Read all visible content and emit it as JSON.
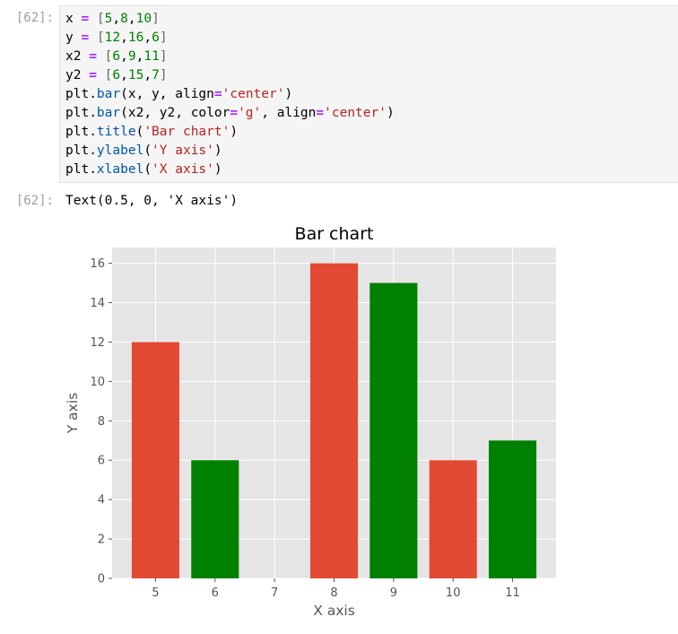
{
  "cell": {
    "input_prompt": "[62]:",
    "output_prompt": "[62]:",
    "code_lines": [
      [
        {
          "t": "x "
        },
        {
          "t": "=",
          "c": "op"
        },
        {
          "t": " "
        },
        {
          "t": "[",
          "c": "br"
        },
        {
          "t": "5",
          "c": "num"
        },
        {
          "t": ","
        },
        {
          "t": "8",
          "c": "num"
        },
        {
          "t": ","
        },
        {
          "t": "10",
          "c": "num"
        },
        {
          "t": "]",
          "c": "br"
        }
      ],
      [
        {
          "t": "y "
        },
        {
          "t": "=",
          "c": "op"
        },
        {
          "t": " "
        },
        {
          "t": "[",
          "c": "br"
        },
        {
          "t": "12",
          "c": "num"
        },
        {
          "t": ","
        },
        {
          "t": "16",
          "c": "num"
        },
        {
          "t": ","
        },
        {
          "t": "6",
          "c": "num"
        },
        {
          "t": "]",
          "c": "br"
        }
      ],
      [
        {
          "t": "x2 "
        },
        {
          "t": "=",
          "c": "op"
        },
        {
          "t": " "
        },
        {
          "t": "[",
          "c": "br"
        },
        {
          "t": "6",
          "c": "num"
        },
        {
          "t": ","
        },
        {
          "t": "9",
          "c": "num"
        },
        {
          "t": ","
        },
        {
          "t": "11",
          "c": "num"
        },
        {
          "t": "]",
          "c": "br"
        }
      ],
      [
        {
          "t": "y2 "
        },
        {
          "t": "=",
          "c": "op"
        },
        {
          "t": " "
        },
        {
          "t": "[",
          "c": "br"
        },
        {
          "t": "6",
          "c": "num"
        },
        {
          "t": ","
        },
        {
          "t": "15",
          "c": "num"
        },
        {
          "t": ","
        },
        {
          "t": "7",
          "c": "num"
        },
        {
          "t": "]",
          "c": "br"
        }
      ],
      [
        {
          "t": "plt."
        },
        {
          "t": "bar",
          "c": "fn"
        },
        {
          "t": "(x, y, align"
        },
        {
          "t": "=",
          "c": "op"
        },
        {
          "t": "'center'",
          "c": "str"
        },
        {
          "t": ")"
        }
      ],
      [
        {
          "t": "plt."
        },
        {
          "t": "bar",
          "c": "fn"
        },
        {
          "t": "(x2, y2, color"
        },
        {
          "t": "=",
          "c": "op"
        },
        {
          "t": "'g'",
          "c": "str"
        },
        {
          "t": ", align"
        },
        {
          "t": "=",
          "c": "op"
        },
        {
          "t": "'center'",
          "c": "str"
        },
        {
          "t": ")"
        }
      ],
      [
        {
          "t": "plt."
        },
        {
          "t": "title",
          "c": "fn"
        },
        {
          "t": "("
        },
        {
          "t": "'Bar chart'",
          "c": "str"
        },
        {
          "t": ")"
        }
      ],
      [
        {
          "t": "plt."
        },
        {
          "t": "ylabel",
          "c": "fn"
        },
        {
          "t": "("
        },
        {
          "t": "'Y axis'",
          "c": "str"
        },
        {
          "t": ")"
        }
      ],
      [
        {
          "t": "plt."
        },
        {
          "t": "xlabel",
          "c": "fn"
        },
        {
          "t": "("
        },
        {
          "t": "'X axis'",
          "c": "str"
        },
        {
          "t": ")"
        }
      ]
    ],
    "output_text": "Text(0.5, 0, 'X axis')"
  },
  "chart_data": {
    "type": "bar",
    "title": "Bar chart",
    "xlabel": "X axis",
    "ylabel": "Y axis",
    "xlim": [
      4.27,
      11.73
    ],
    "ylim": [
      0,
      16.8
    ],
    "x_ticks": [
      5,
      6,
      7,
      8,
      9,
      10,
      11
    ],
    "y_ticks": [
      0,
      2,
      4,
      6,
      8,
      10,
      12,
      14,
      16
    ],
    "grid": true,
    "bar_width": 0.8,
    "series": [
      {
        "x": [
          5,
          8,
          10
        ],
        "values": [
          12,
          16,
          6
        ],
        "color": "#e24a33"
      },
      {
        "x": [
          6,
          9,
          11
        ],
        "values": [
          6,
          15,
          7
        ],
        "color": "#008000"
      }
    ],
    "colors": {
      "plot_bg": "#e5e5e5",
      "grid": "#ffffff",
      "text": "#555555"
    }
  }
}
